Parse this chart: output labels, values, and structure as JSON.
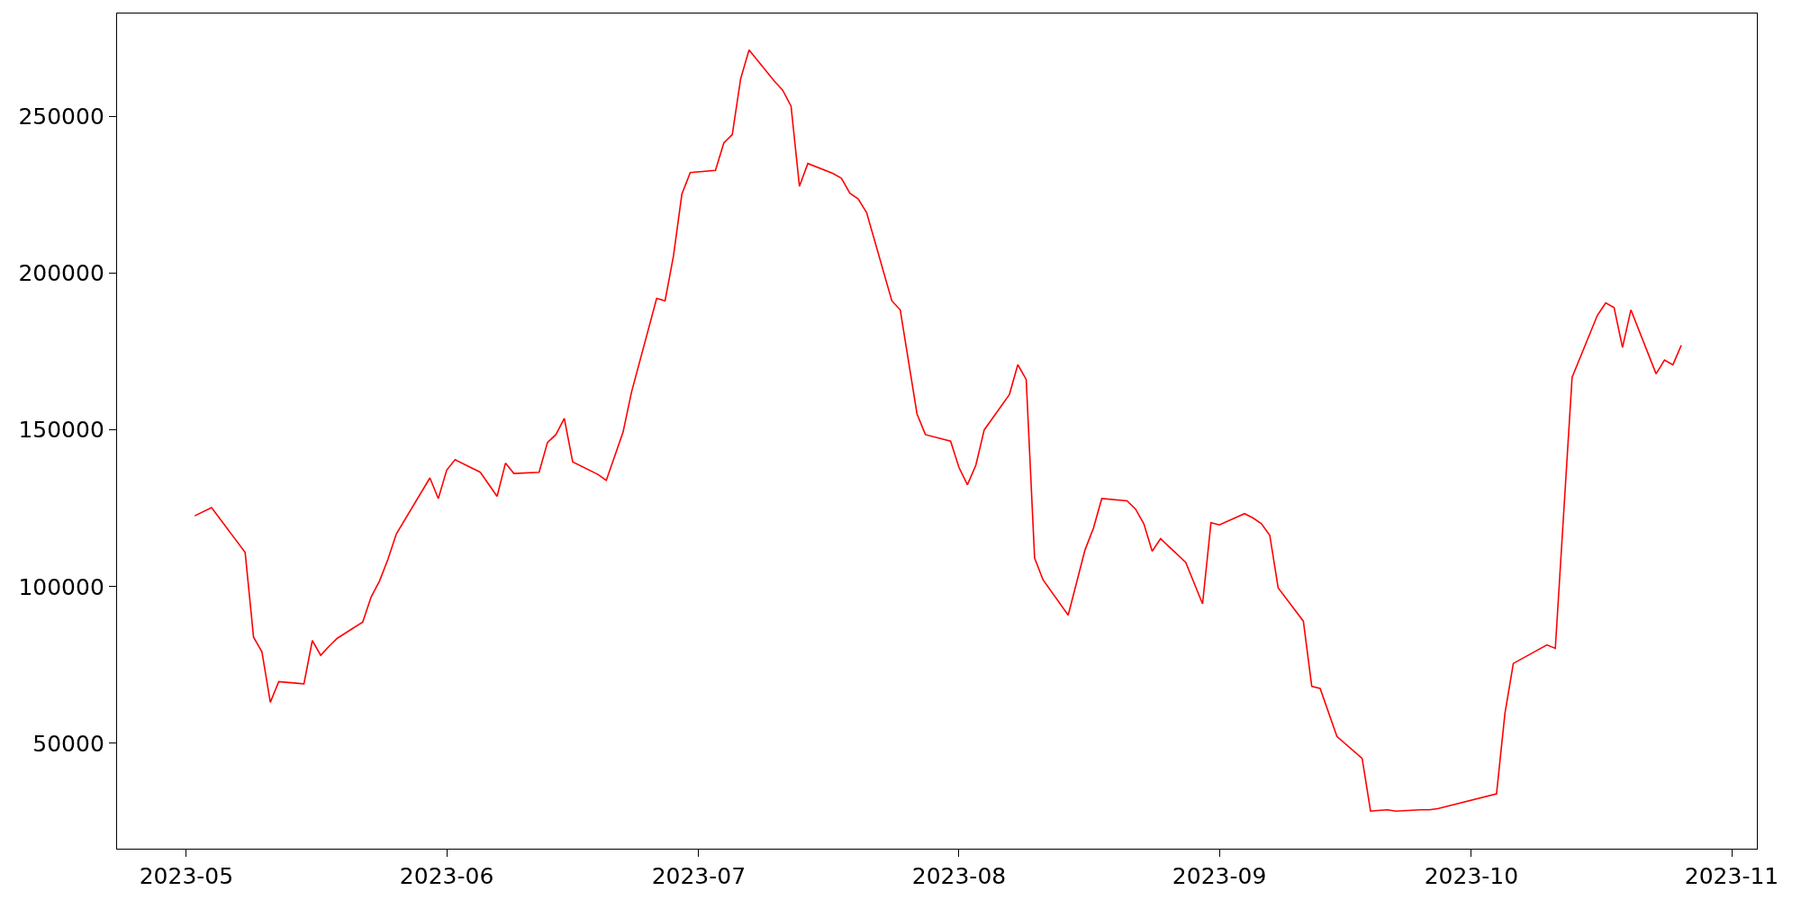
{
  "chart_data": {
    "type": "line",
    "x": [
      "2023-05-02",
      "2023-05-04",
      "2023-05-08",
      "2023-05-09",
      "2023-05-10",
      "2023-05-11",
      "2023-05-12",
      "2023-05-15",
      "2023-05-16",
      "2023-05-17",
      "2023-05-18",
      "2023-05-19",
      "2023-05-22",
      "2023-05-23",
      "2023-05-24",
      "2023-05-25",
      "2023-05-26",
      "2023-05-30",
      "2023-05-31",
      "2023-06-01",
      "2023-06-02",
      "2023-06-05",
      "2023-06-07",
      "2023-06-08",
      "2023-06-09",
      "2023-06-12",
      "2023-06-13",
      "2023-06-14",
      "2023-06-15",
      "2023-06-16",
      "2023-06-19",
      "2023-06-20",
      "2023-06-22",
      "2023-06-23",
      "2023-06-26",
      "2023-06-27",
      "2023-06-28",
      "2023-06-29",
      "2023-06-30",
      "2023-07-03",
      "2023-07-04",
      "2023-07-05",
      "2023-07-06",
      "2023-07-07",
      "2023-07-10",
      "2023-07-11",
      "2023-07-12",
      "2023-07-13",
      "2023-07-14",
      "2023-07-17",
      "2023-07-18",
      "2023-07-19",
      "2023-07-20",
      "2023-07-21",
      "2023-07-24",
      "2023-07-25",
      "2023-07-27",
      "2023-07-28",
      "2023-07-31",
      "2023-08-01",
      "2023-08-02",
      "2023-08-03",
      "2023-08-04",
      "2023-08-07",
      "2023-08-08",
      "2023-08-09",
      "2023-08-10",
      "2023-08-11",
      "2023-08-14",
      "2023-08-16",
      "2023-08-17",
      "2023-08-18",
      "2023-08-21",
      "2023-08-22",
      "2023-08-23",
      "2023-08-24",
      "2023-08-25",
      "2023-08-28",
      "2023-08-29",
      "2023-08-30",
      "2023-08-31",
      "2023-09-01",
      "2023-09-04",
      "2023-09-05",
      "2023-09-06",
      "2023-09-07",
      "2023-09-08",
      "2023-09-11",
      "2023-09-12",
      "2023-09-13",
      "2023-09-15",
      "2023-09-18",
      "2023-09-19",
      "2023-09-21",
      "2023-09-22",
      "2023-09-25",
      "2023-09-26",
      "2023-09-27",
      "2023-10-04",
      "2023-10-05",
      "2023-10-06",
      "2023-10-10",
      "2023-10-11",
      "2023-10-13",
      "2023-10-16",
      "2023-10-17",
      "2023-10-18",
      "2023-10-19",
      "2023-10-20",
      "2023-10-23",
      "2023-10-24",
      "2023-10-25",
      "2023-10-26"
    ],
    "series": [
      {
        "color": "#ff0000",
        "values": [
          122600,
          125200,
          110900,
          83900,
          79200,
          63100,
          69700,
          69000,
          82800,
          78100,
          81000,
          83600,
          88700,
          96700,
          101800,
          108700,
          116800,
          134700,
          128100,
          137200,
          140500,
          136500,
          128800,
          139400,
          136100,
          136500,
          146000,
          148500,
          153700,
          139800,
          135800,
          133900,
          149300,
          162000,
          192000,
          191200,
          205500,
          225200,
          232100,
          232800,
          241600,
          244200,
          262000,
          271200,
          261300,
          258400,
          253300,
          227700,
          235000,
          231800,
          230300,
          225500,
          223700,
          219300,
          191200,
          188300,
          155100,
          148500,
          146400,
          138000,
          132500,
          138700,
          150000,
          161300,
          170800,
          166100,
          109100,
          102200,
          90900,
          111700,
          118600,
          128100,
          127400,
          124800,
          120100,
          111300,
          115300,
          107700,
          101100,
          94500,
          120400,
          119700,
          123300,
          121900,
          120100,
          116400,
          99600,
          89000,
          68200,
          67500,
          52200,
          45200,
          28400,
          28800,
          28400,
          28800,
          28800,
          29200,
          33900,
          59500,
          75500,
          81400,
          80300,
          166800,
          186500,
          190500,
          189000,
          176300,
          188300,
          167900,
          172300,
          170800,
          177000
        ]
      }
    ],
    "xlim": [
      "2023-04-22T18:00",
      "2023-11-04"
    ],
    "xticks": [
      {
        "value": "2023-05-01",
        "label": "2023-05"
      },
      {
        "value": "2023-06-01",
        "label": "2023-06"
      },
      {
        "value": "2023-07-01",
        "label": "2023-07"
      },
      {
        "value": "2023-08-01",
        "label": "2023-08"
      },
      {
        "value": "2023-09-01",
        "label": "2023-09"
      },
      {
        "value": "2023-10-01",
        "label": "2023-10"
      },
      {
        "value": "2023-11-01",
        "label": "2023-11"
      }
    ],
    "ylim": [
      16400,
      282850
    ],
    "yticks": [
      50000,
      100000,
      150000,
      200000,
      250000
    ],
    "line_style": "solid",
    "marker": "none"
  }
}
